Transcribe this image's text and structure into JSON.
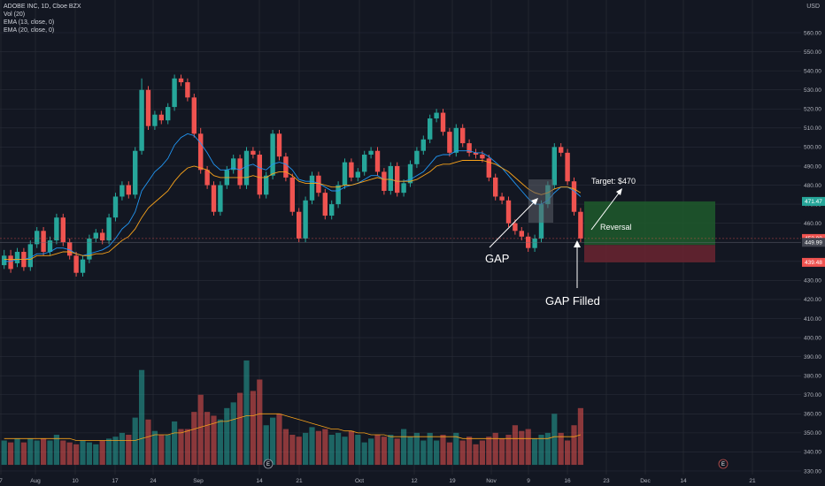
{
  "legend": {
    "symbol": "ADOBE INC, 1D, Cboe BZX",
    "vol": "Vol (20)",
    "ema1": "EMA (13, close, 0)",
    "ema2": "EMA (20, close, 0)"
  },
  "axis_unit": "USD",
  "colors": {
    "background": "#131722",
    "grid": "#2a2e39",
    "up": "#26a69a",
    "down": "#ef5350",
    "ema13": "#2196f3",
    "ema20": "#f7a21b",
    "vol_ma": "#f7a21b",
    "target_zone": "#1e5a2c",
    "stop_zone": "#6b2430"
  },
  "chart_data": {
    "type": "candlestick",
    "y_ticks": [
      "560.00",
      "550.00",
      "540.00",
      "530.00",
      "520.00",
      "510.00",
      "500.00",
      "490.00",
      "480.00",
      "470.00",
      "460.00",
      "450.00",
      "440.00",
      "430.00",
      "420.00",
      "410.00",
      "400.00",
      "390.00",
      "380.00",
      "370.00",
      "360.00",
      "350.00",
      "340.00",
      "330.00"
    ],
    "ylim": [
      326,
      566
    ],
    "x_ticks": [
      "7",
      "Aug",
      "10",
      "17",
      "24",
      "Sep",
      "14",
      "21",
      "Oct",
      "12",
      "19",
      "Nov",
      "9",
      "16",
      "23",
      "Dec",
      "14",
      "21"
    ],
    "price_labels": [
      {
        "text": "471.47",
        "value": 471.47,
        "color": "#26a69a"
      },
      {
        "text": "452.00",
        "value": 452.0,
        "color": "#ef5350"
      },
      {
        "text": "449.99",
        "value": 449.99,
        "color": "#434651"
      },
      {
        "text": "439.48",
        "value": 439.48,
        "color": "#ef5350"
      }
    ],
    "candles": [
      [
        438,
        443,
        436,
        446
      ],
      [
        443,
        436,
        434,
        446
      ],
      [
        439,
        445,
        437,
        447
      ],
      [
        445,
        437,
        435,
        447
      ],
      [
        437,
        449,
        435,
        451
      ],
      [
        449,
        456,
        447,
        458
      ],
      [
        456,
        445,
        443,
        458
      ],
      [
        445,
        451,
        443,
        453
      ],
      [
        451,
        463,
        449,
        465
      ],
      [
        463,
        450,
        448,
        465
      ],
      [
        450,
        443,
        441,
        452
      ],
      [
        443,
        434,
        432,
        445
      ],
      [
        434,
        441,
        432,
        443
      ],
      [
        441,
        452,
        439,
        454
      ],
      [
        452,
        455,
        450,
        457
      ],
      [
        455,
        451,
        449,
        457
      ],
      [
        451,
        463,
        449,
        465
      ],
      [
        463,
        474,
        461,
        476
      ],
      [
        474,
        480,
        472,
        482
      ],
      [
        480,
        475,
        473,
        482
      ],
      [
        475,
        498,
        473,
        500
      ],
      [
        498,
        530,
        496,
        536
      ],
      [
        530,
        511,
        509,
        532
      ],
      [
        511,
        517,
        509,
        519
      ],
      [
        517,
        514,
        512,
        519
      ],
      [
        514,
        521,
        512,
        523
      ],
      [
        521,
        536,
        519,
        538
      ],
      [
        536,
        534,
        532,
        538
      ],
      [
        534,
        526,
        524,
        536
      ],
      [
        526,
        507,
        505,
        528
      ],
      [
        507,
        488,
        486,
        510
      ],
      [
        488,
        480,
        478,
        490
      ],
      [
        480,
        466,
        464,
        482
      ],
      [
        466,
        480,
        464,
        482
      ],
      [
        480,
        488,
        478,
        490
      ],
      [
        488,
        494,
        486,
        496
      ],
      [
        494,
        480,
        478,
        496
      ],
      [
        480,
        498,
        478,
        500
      ],
      [
        498,
        496,
        494,
        500
      ],
      [
        496,
        475,
        473,
        498
      ],
      [
        475,
        485,
        473,
        487
      ],
      [
        485,
        507,
        483,
        509
      ],
      [
        507,
        495,
        493,
        509
      ],
      [
        495,
        484,
        482,
        497
      ],
      [
        484,
        466,
        464,
        486
      ],
      [
        466,
        452,
        450,
        468
      ],
      [
        452,
        472,
        450,
        474
      ],
      [
        472,
        485,
        470,
        487
      ],
      [
        485,
        476,
        474,
        487
      ],
      [
        476,
        464,
        462,
        478
      ],
      [
        464,
        470,
        462,
        472
      ],
      [
        470,
        480,
        468,
        482
      ],
      [
        480,
        492,
        478,
        494
      ],
      [
        492,
        484,
        482,
        494
      ],
      [
        484,
        487,
        482,
        489
      ],
      [
        487,
        496,
        485,
        498
      ],
      [
        496,
        498,
        494,
        500
      ],
      [
        498,
        487,
        485,
        500
      ],
      [
        487,
        477,
        475,
        489
      ],
      [
        477,
        490,
        475,
        492
      ],
      [
        490,
        476,
        474,
        492
      ],
      [
        476,
        481,
        474,
        483
      ],
      [
        481,
        491,
        479,
        493
      ],
      [
        491,
        498,
        489,
        500
      ],
      [
        498,
        504,
        496,
        506
      ],
      [
        504,
        515,
        502,
        517
      ],
      [
        515,
        518,
        513,
        520
      ],
      [
        518,
        508,
        506,
        520
      ],
      [
        508,
        497,
        495,
        510
      ],
      [
        497,
        510,
        495,
        512
      ],
      [
        510,
        502,
        500,
        512
      ],
      [
        502,
        497,
        495,
        504
      ],
      [
        497,
        496,
        494,
        499
      ],
      [
        496,
        494,
        492,
        498
      ],
      [
        494,
        484,
        482,
        496
      ],
      [
        484,
        474,
        472,
        486
      ],
      [
        474,
        472,
        470,
        476
      ],
      [
        472,
        460,
        458,
        474
      ],
      [
        460,
        456,
        454,
        462
      ],
      [
        456,
        453,
        451,
        458
      ],
      [
        453,
        447,
        445,
        455
      ],
      [
        447,
        452,
        445,
        454
      ],
      [
        452,
        470,
        450,
        472
      ],
      [
        470,
        480,
        468,
        482
      ],
      [
        480,
        500,
        478,
        502
      ],
      [
        500,
        497,
        495,
        502
      ],
      [
        497,
        482,
        480,
        499
      ],
      [
        482,
        466,
        464,
        484
      ],
      [
        466,
        452,
        450,
        468
      ]
    ],
    "ema13": [
      440,
      440,
      441,
      441,
      442,
      444,
      444,
      445,
      447,
      447,
      446,
      444,
      443,
      444,
      445,
      446,
      448,
      452,
      457,
      460,
      466,
      477,
      482,
      487,
      490,
      494,
      501,
      505,
      507,
      506,
      502,
      497,
      491,
      488,
      488,
      489,
      488,
      490,
      491,
      489,
      488,
      491,
      492,
      491,
      488,
      483,
      482,
      482,
      481,
      479,
      477,
      477,
      479,
      480,
      481,
      483,
      485,
      485,
      483,
      483,
      482,
      482,
      483,
      485,
      487,
      491,
      495,
      496,
      496,
      498,
      498,
      498,
      497,
      497,
      495,
      492,
      489,
      485,
      481,
      477,
      473,
      470,
      470,
      472,
      476,
      479,
      479,
      477,
      474
    ],
    "ema20": [
      441,
      441,
      441,
      441,
      441,
      443,
      443,
      443,
      444,
      445,
      445,
      444,
      443,
      443,
      444,
      444,
      445,
      448,
      451,
      453,
      457,
      463,
      468,
      471,
      474,
      477,
      482,
      486,
      489,
      490,
      489,
      488,
      485,
      484,
      484,
      484,
      484,
      484,
      485,
      484,
      484,
      486,
      487,
      487,
      485,
      482,
      481,
      481,
      481,
      480,
      479,
      479,
      480,
      480,
      481,
      482,
      483,
      484,
      483,
      483,
      482,
      482,
      482,
      483,
      485,
      487,
      490,
      491,
      491,
      492,
      493,
      493,
      493,
      493,
      492,
      491,
      489,
      487,
      484,
      481,
      478,
      476,
      475,
      476,
      478,
      479,
      479,
      478,
      476
    ],
    "volume": [
      346,
      345,
      347,
      345,
      347,
      346,
      347,
      346,
      349,
      346,
      345,
      344,
      346,
      345,
      344,
      346,
      347,
      348,
      350,
      349,
      358,
      383,
      357,
      351,
      349,
      349,
      356,
      352,
      352,
      361,
      370,
      361,
      359,
      357,
      363,
      366,
      371,
      388,
      372,
      378,
      354,
      358,
      360,
      352,
      349,
      348,
      350,
      353,
      351,
      352,
      349,
      350,
      348,
      351,
      349,
      345,
      347,
      349,
      348,
      349,
      347,
      352,
      348,
      350,
      346,
      350,
      346,
      349,
      345,
      350,
      346,
      348,
      344,
      346,
      348,
      350,
      347,
      349,
      354,
      351,
      352,
      347,
      349,
      350,
      360,
      350,
      346,
      354,
      363
    ],
    "vol_ma": [
      347,
      347,
      347,
      347,
      347,
      347,
      347,
      347,
      347,
      347,
      347,
      346,
      346,
      346,
      346,
      346,
      346,
      346,
      346,
      346,
      346,
      347,
      348,
      349,
      349,
      349,
      350,
      350,
      351,
      352,
      353,
      354,
      355,
      356,
      356,
      357,
      358,
      359,
      359,
      360,
      360,
      360,
      360,
      359,
      358,
      357,
      356,
      355,
      354,
      353,
      352,
      352,
      351,
      351,
      350,
      350,
      349,
      349,
      349,
      348,
      348,
      348,
      348,
      348,
      348,
      348,
      348,
      348,
      348,
      348,
      347,
      347,
      347,
      347,
      347,
      347,
      347,
      347,
      347,
      347,
      347,
      347,
      347,
      347,
      348,
      348,
      348,
      348,
      349
    ]
  },
  "annotations": {
    "gap_label": "GAP",
    "gap_filled_label": "GAP Filled",
    "target_label": "Target: $470",
    "reversal_label": "Reversal",
    "earnings_badge": "E"
  }
}
